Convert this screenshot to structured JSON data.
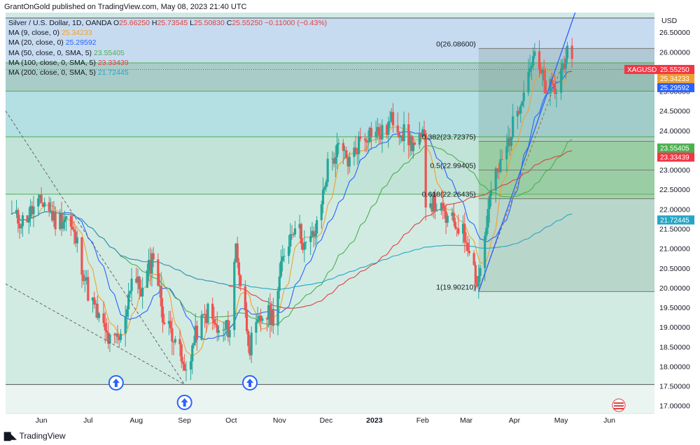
{
  "header": {
    "publisher_line": "GrantOnGold published on TradingView.com, May 08, 2023 21:40 UTC"
  },
  "legend": {
    "symbol": "Silver / U.S. Dollar, 1D, OANDA",
    "o_label": "O",
    "o_value": "25.66250",
    "h_label": "H",
    "h_value": "25.73545",
    "l_label": "L",
    "l_value": "25.50830",
    "c_label": "C",
    "c_value": "25.55250",
    "change": "−0.11000 (−0.43%)",
    "ma": [
      {
        "label": "MA (9, close, 0)",
        "value": "25.34233",
        "color": "#f0a030"
      },
      {
        "label": "MA (20, close, 0)",
        "value": "25.29592",
        "color": "#2962ff"
      },
      {
        "label": "MA (50, close, 0, SMA, 5)",
        "value": "23.55405",
        "color": "#4caf50"
      },
      {
        "label": "MA (100, close, 0, SMA, 5)",
        "value": "23.33439",
        "color": "#e04040"
      },
      {
        "label": "MA (200, close, 0, SMA, 5)",
        "value": "21.72445",
        "color": "#26a6c6"
      }
    ]
  },
  "axis": {
    "currency": "USD",
    "price_ticks": [
      "26.50000",
      "26.00000",
      "25.50000",
      "25.00000",
      "24.50000",
      "24.00000",
      "23.50000",
      "23.00000",
      "22.50000",
      "22.00000",
      "21.50000",
      "21.00000",
      "20.50000",
      "20.00000",
      "19.50000",
      "19.00000",
      "18.50000",
      "18.00000",
      "17.50000",
      "17.00000"
    ],
    "months": [
      "Jun",
      "Jul",
      "Aug",
      "Sep",
      "Oct",
      "Nov",
      "Dec",
      "2023",
      "Feb",
      "Mar",
      "Apr",
      "May",
      "Jun"
    ]
  },
  "price_labels": [
    {
      "text": "XAGUSD",
      "value": "25.55250",
      "color": "#f23645"
    },
    {
      "text": "",
      "value": "25.34233",
      "color": "#f0a030"
    },
    {
      "text": "",
      "value": "25.29592",
      "color": "#2962ff"
    },
    {
      "text": "",
      "value": "23.55405",
      "color": "#4caf50"
    },
    {
      "text": "",
      "value": "23.33439",
      "color": "#f23645"
    },
    {
      "text": "",
      "value": "21.72445",
      "color": "#26a6c6"
    }
  ],
  "fib_levels": [
    {
      "label": "0(26.08600)",
      "price": 26.086
    },
    {
      "label": "0.382(23.72375)",
      "price": 23.72375
    },
    {
      "label": "0.5(22.99405)",
      "price": 22.99405
    },
    {
      "label": "0.618(22.26435)",
      "price": 22.26435
    },
    {
      "label": "1(19.90210)",
      "price": 19.9021
    }
  ],
  "chart_data": {
    "type": "candlestick",
    "symbol": "XAGUSD",
    "timeframe": "1D",
    "ylim": [
      16.8,
      27.0
    ],
    "x_axis": "date",
    "horizontal_lines": [
      26.86,
      25.72,
      25.0,
      23.84,
      22.38,
      17.54
    ],
    "arrows": [
      "2022-07-19",
      "2022-09-01",
      "2022-10-13"
    ],
    "close_series": [
      {
        "date": "2022-05-13",
        "close": 21.8
      },
      {
        "date": "2022-05-20",
        "close": 21.7
      },
      {
        "date": "2022-05-27",
        "close": 22.0
      },
      {
        "date": "2022-06-03",
        "close": 22.2
      },
      {
        "date": "2022-06-10",
        "close": 21.7
      },
      {
        "date": "2022-06-17",
        "close": 21.8
      },
      {
        "date": "2022-06-24",
        "close": 21.1
      },
      {
        "date": "2022-07-01",
        "close": 19.9
      },
      {
        "date": "2022-07-08",
        "close": 19.2
      },
      {
        "date": "2022-07-15",
        "close": 18.6
      },
      {
        "date": "2022-07-22",
        "close": 18.7
      },
      {
        "date": "2022-07-29",
        "close": 20.3
      },
      {
        "date": "2022-08-05",
        "close": 19.9
      },
      {
        "date": "2022-08-12",
        "close": 20.9
      },
      {
        "date": "2022-08-19",
        "close": 19.1
      },
      {
        "date": "2022-08-26",
        "close": 18.8
      },
      {
        "date": "2022-09-01",
        "close": 17.8
      },
      {
        "date": "2022-09-09",
        "close": 18.9
      },
      {
        "date": "2022-09-16",
        "close": 19.4
      },
      {
        "date": "2022-09-23",
        "close": 18.8
      },
      {
        "date": "2022-09-30",
        "close": 19.0
      },
      {
        "date": "2022-10-04",
        "close": 21.1
      },
      {
        "date": "2022-10-07",
        "close": 20.1
      },
      {
        "date": "2022-10-13",
        "close": 18.5
      },
      {
        "date": "2022-10-21",
        "close": 19.3
      },
      {
        "date": "2022-10-28",
        "close": 19.3
      },
      {
        "date": "2022-11-04",
        "close": 20.9
      },
      {
        "date": "2022-11-11",
        "close": 21.7
      },
      {
        "date": "2022-11-18",
        "close": 21.0
      },
      {
        "date": "2022-11-25",
        "close": 21.5
      },
      {
        "date": "2022-12-02",
        "close": 23.1
      },
      {
        "date": "2022-12-09",
        "close": 23.5
      },
      {
        "date": "2022-12-16",
        "close": 23.2
      },
      {
        "date": "2022-12-23",
        "close": 23.8
      },
      {
        "date": "2022-12-30",
        "close": 24.0
      },
      {
        "date": "2023-01-06",
        "close": 23.9
      },
      {
        "date": "2023-01-13",
        "close": 24.3
      },
      {
        "date": "2023-01-20",
        "close": 23.9
      },
      {
        "date": "2023-01-27",
        "close": 23.6
      },
      {
        "date": "2023-02-02",
        "close": 23.8
      },
      {
        "date": "2023-02-03",
        "close": 22.3
      },
      {
        "date": "2023-02-10",
        "close": 22.1
      },
      {
        "date": "2023-02-17",
        "close": 21.7
      },
      {
        "date": "2023-02-24",
        "close": 21.6
      },
      {
        "date": "2023-03-03",
        "close": 21.1
      },
      {
        "date": "2023-03-08",
        "close": 20.1
      },
      {
        "date": "2023-03-10",
        "close": 20.5
      },
      {
        "date": "2023-03-17",
        "close": 22.5
      },
      {
        "date": "2023-03-24",
        "close": 23.2
      },
      {
        "date": "2023-03-31",
        "close": 24.1
      },
      {
        "date": "2023-04-06",
        "close": 25.0
      },
      {
        "date": "2023-04-13",
        "close": 25.9
      },
      {
        "date": "2023-04-21",
        "close": 25.1
      },
      {
        "date": "2023-04-28",
        "close": 25.0
      },
      {
        "date": "2023-05-04",
        "close": 26.0
      },
      {
        "date": "2023-05-08",
        "close": 25.55
      }
    ]
  }
}
